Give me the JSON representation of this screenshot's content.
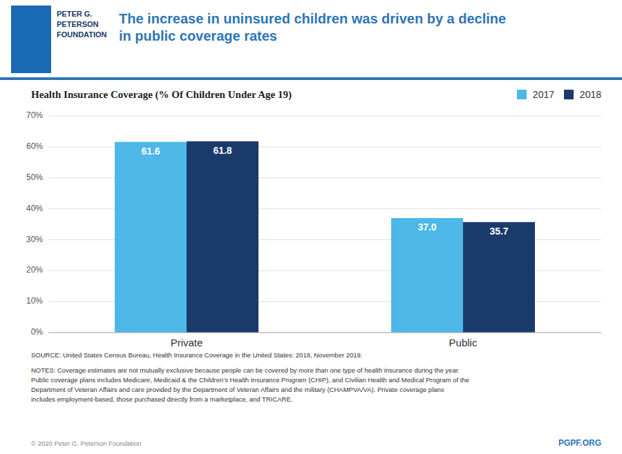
{
  "chart_data": {
    "type": "bar",
    "title": "The increase in uninsured children was driven by a decline\nin public coverage rates",
    "subtitle": "Health Insurance Coverage (% Of Children Under Age 19)",
    "categories": [
      "Private",
      "Public"
    ],
    "series": [
      {
        "name": "2017",
        "color": "#4db8e8",
        "values": [
          61.6,
          37.0
        ],
        "value_labels": [
          "61.6",
          "37.0"
        ]
      },
      {
        "name": "2018",
        "color": "#1a3a6b",
        "values": [
          61.8,
          35.7
        ],
        "value_labels": [
          "61.8",
          "35.7"
        ]
      }
    ],
    "ylim": [
      0,
      70
    ],
    "yticks": [
      {
        "value": 0,
        "label": "0%"
      },
      {
        "value": 10,
        "label": "10%"
      },
      {
        "value": 20,
        "label": "20%"
      },
      {
        "value": 30,
        "label": "30%"
      },
      {
        "value": 40,
        "label": "40%"
      },
      {
        "value": 50,
        "label": "50%"
      },
      {
        "value": 60,
        "label": "60%"
      },
      {
        "value": 70,
        "label": "70%"
      }
    ],
    "grid": true,
    "legend": "upper right",
    "data_labels": true,
    "annotations": [
      "PETER G.\nPETERSON\nFOUNDATION",
      "SOURCE: United States Census Bureau, Health Insurance Coverage in the United States: 2018, November 2019.",
      "NOTES: Coverage estimates are not mutually exclusive because people can be covered by more than one type of health insurance during the year.\nPublic coverage plans includes Medicare, Medicaid & the Children’s Health Insurance Program (CHIP), and Civilian Health and Medical Program of the\nDepartment of Veteran Affairs and care provided by the Department of Veteran Affairs and the military (CHAMPVA/VA). Private coverage plans\nincludes employment-based, those purchased directly from a marketplace, and TRICARE.",
      "© 2020 Peter G. Peterson Foundation",
      "PGPF.ORG"
    ]
  }
}
